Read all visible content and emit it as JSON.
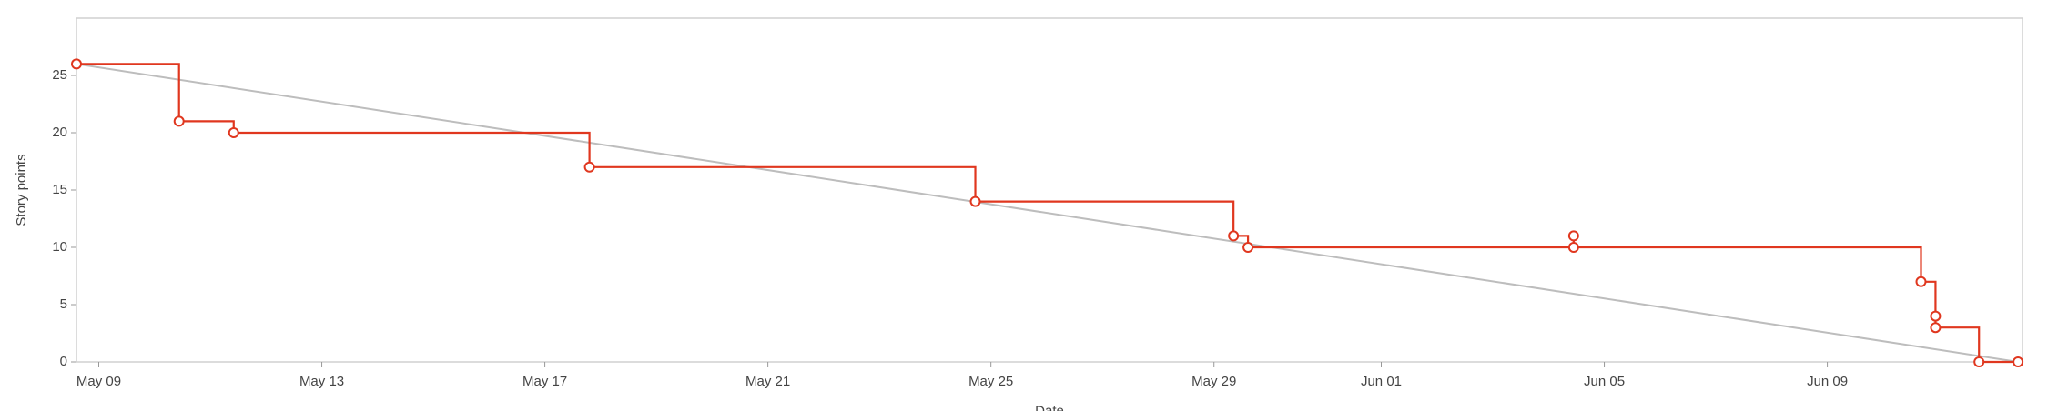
{
  "chart_data": {
    "type": "step-line",
    "y_label": "Story points",
    "x_label": "Date",
    "xlim": [
      -0.4,
      34.5
    ],
    "ylim": [
      0,
      30
    ],
    "xticks": [
      {
        "value": 0,
        "label": "May 09"
      },
      {
        "value": 4,
        "label": "May 13"
      },
      {
        "value": 8,
        "label": "May 17"
      },
      {
        "value": 12,
        "label": "May 21"
      },
      {
        "value": 16,
        "label": "May 25"
      },
      {
        "value": 20,
        "label": "May 29"
      },
      {
        "value": 23,
        "label": "Jun 01"
      },
      {
        "value": 27,
        "label": "Jun 05"
      },
      {
        "value": 31,
        "label": "Jun 09"
      }
    ],
    "yticks": [
      0,
      5,
      10,
      15,
      20,
      25
    ],
    "series": [
      {
        "color": "#bdbdbd",
        "step": false,
        "markers": false,
        "x": [
          -0.4,
          34.42
        ],
        "values": [
          26,
          0
        ]
      },
      {
        "color": "#e0371f",
        "step": true,
        "markers": true,
        "x": [
          -0.4,
          1.44,
          2.42,
          8.8,
          15.72,
          20.35,
          20.61,
          26.45,
          26.45,
          32.68,
          32.94,
          32.94,
          33.72,
          34.42
        ],
        "values": [
          26,
          21,
          20,
          17,
          14,
          11,
          10,
          11,
          10,
          7,
          4,
          3,
          0,
          0
        ]
      }
    ]
  }
}
